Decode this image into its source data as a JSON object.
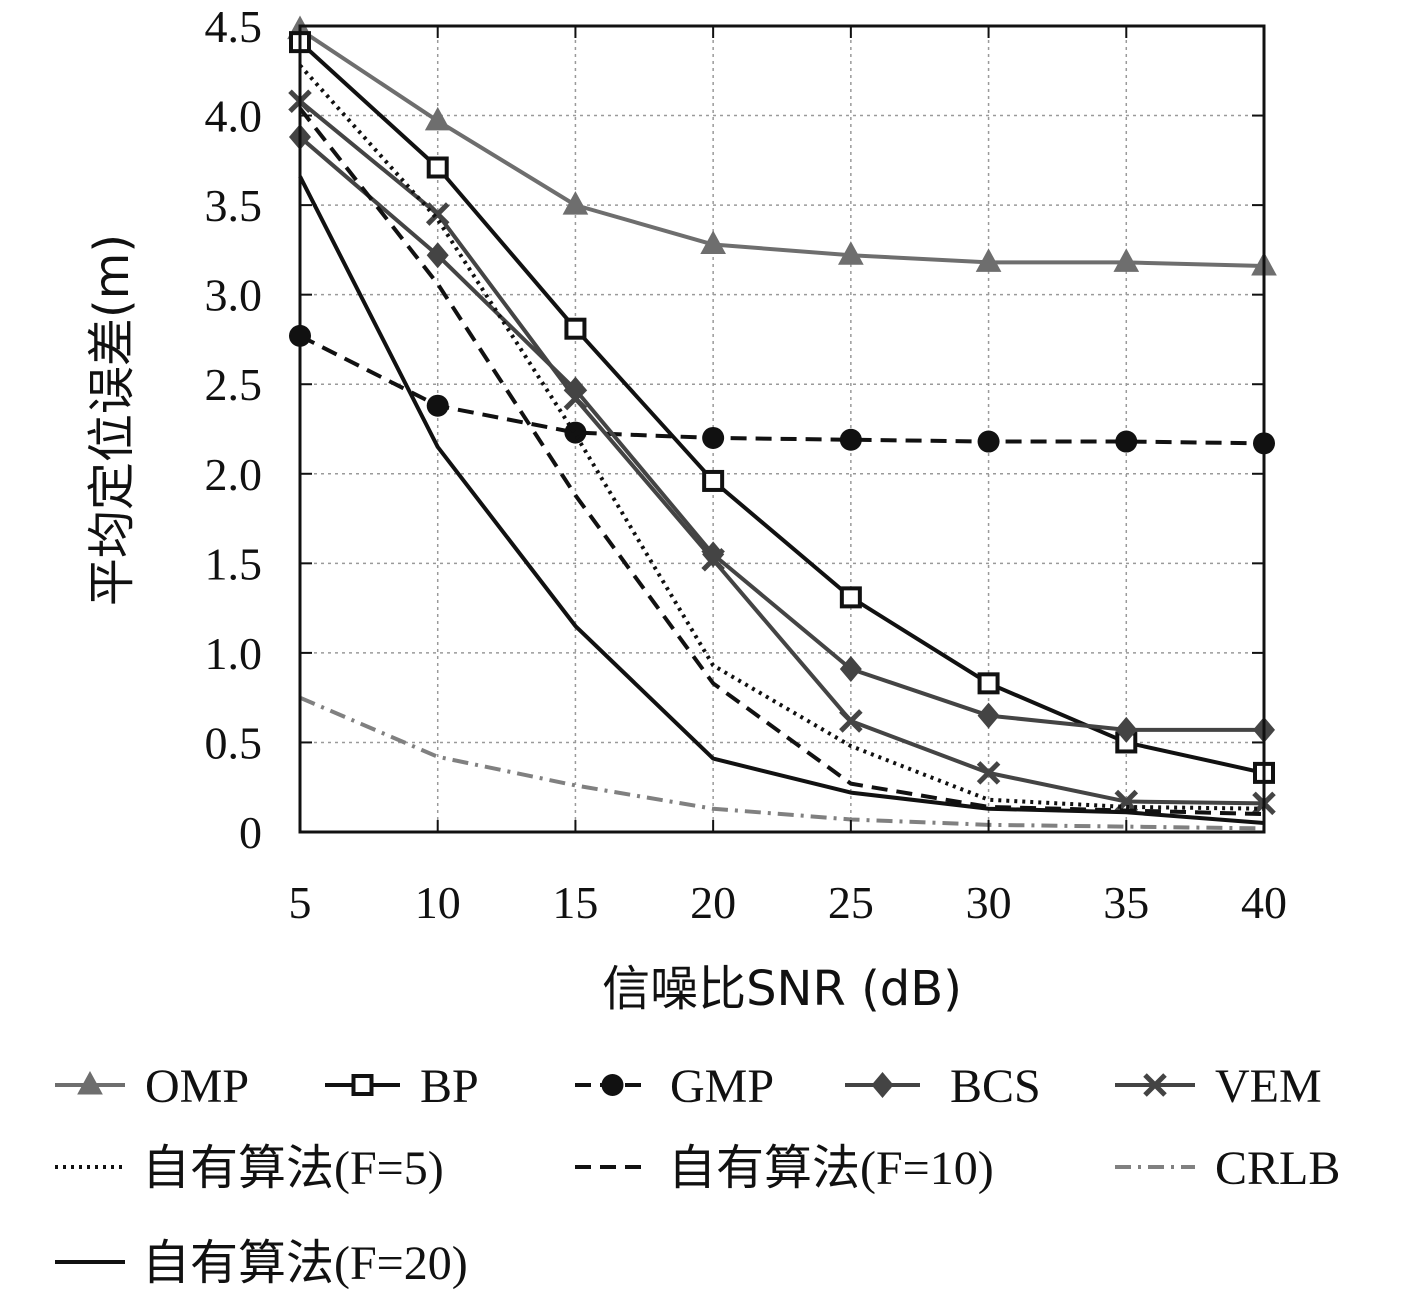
{
  "chart_data": {
    "type": "line",
    "title": "",
    "xlabel": "信噪比SNR (dB)",
    "ylabel": "平均定位误差(m)",
    "x": [
      5,
      10,
      15,
      20,
      25,
      30,
      35,
      40
    ],
    "xticks": [
      "5",
      "10",
      "15",
      "20",
      "25",
      "30",
      "35",
      "40"
    ],
    "yticks": [
      "0",
      "0.5",
      "1.0",
      "1.5",
      "2.0",
      "2.5",
      "3.0",
      "3.5",
      "4.0",
      "4.5"
    ],
    "xlim": [
      5,
      40
    ],
    "ylim": [
      0,
      4.5
    ],
    "grid": true,
    "legend_position": "bottom",
    "series": [
      {
        "name": "OMP",
        "values": [
          4.48,
          3.97,
          3.5,
          3.28,
          3.22,
          3.18,
          3.18,
          3.16
        ],
        "color": "#6e6e6e",
        "dash": "solid",
        "marker": "triangle"
      },
      {
        "name": "BP",
        "values": [
          4.41,
          3.71,
          2.81,
          1.96,
          1.31,
          0.83,
          0.5,
          0.33
        ],
        "color": "#111111",
        "dash": "solid",
        "marker": "square-open"
      },
      {
        "name": "GMP",
        "values": [
          2.77,
          2.38,
          2.23,
          2.2,
          2.19,
          2.18,
          2.18,
          2.17
        ],
        "color": "#111111",
        "dash": "dashed",
        "marker": "circle"
      },
      {
        "name": "BCS",
        "values": [
          3.88,
          3.22,
          2.47,
          1.55,
          0.91,
          0.65,
          0.57,
          0.57
        ],
        "color": "#444444",
        "dash": "solid",
        "marker": "diamond"
      },
      {
        "name": "VEM",
        "values": [
          4.08,
          3.45,
          2.42,
          1.52,
          0.62,
          0.33,
          0.17,
          0.16
        ],
        "color": "#444444",
        "dash": "solid",
        "marker": "x"
      },
      {
        "name": "自有算法(F=5)",
        "values": [
          4.28,
          3.42,
          2.22,
          0.93,
          0.48,
          0.18,
          0.14,
          0.13
        ],
        "color": "#111111",
        "dash": "dotted",
        "marker": "none"
      },
      {
        "name": "自有算法(F=10)",
        "values": [
          4.04,
          3.06,
          1.88,
          0.83,
          0.27,
          0.14,
          0.12,
          0.1
        ],
        "color": "#111111",
        "dash": "dashed",
        "marker": "none"
      },
      {
        "name": "CRLB",
        "values": [
          0.75,
          0.42,
          0.26,
          0.13,
          0.07,
          0.04,
          0.03,
          0.02
        ],
        "color": "#808080",
        "dash": "dashdot",
        "marker": "none"
      },
      {
        "name": "自有算法(F=20)",
        "values": [
          3.66,
          2.15,
          1.15,
          0.41,
          0.22,
          0.13,
          0.11,
          0.05
        ],
        "color": "#111111",
        "dash": "solid",
        "marker": "none"
      }
    ]
  }
}
